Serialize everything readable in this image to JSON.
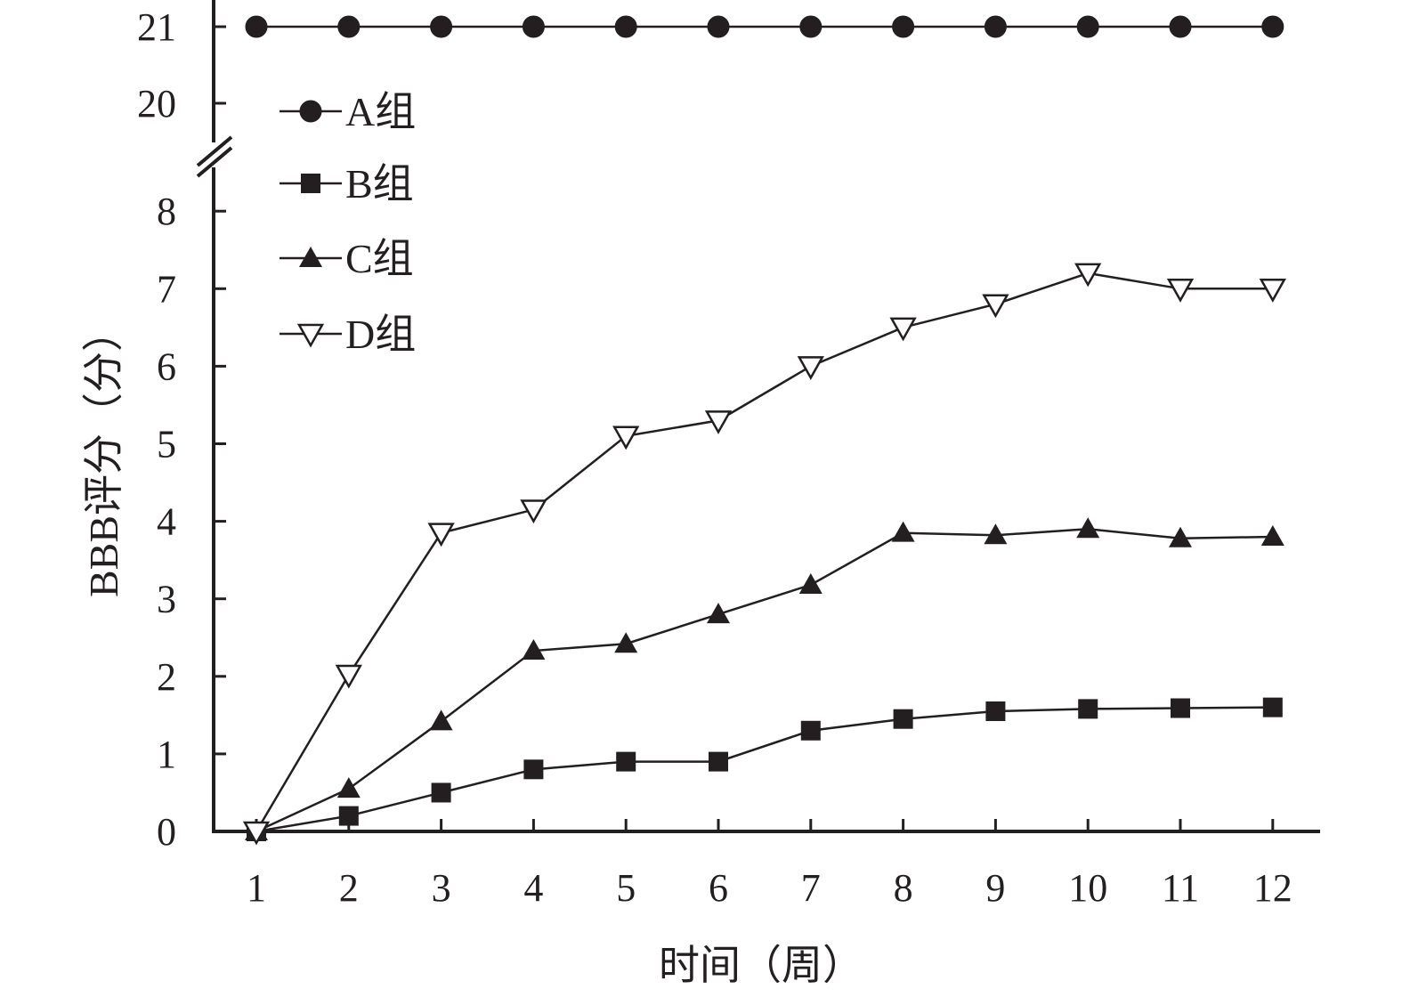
{
  "chart_data": {
    "type": "line",
    "xlabel": "时间（周）",
    "ylabel": "BBB评分（分）",
    "x": [
      1,
      2,
      3,
      4,
      5,
      6,
      7,
      8,
      9,
      10,
      11,
      12
    ],
    "x_tick_labels": [
      "1",
      "2",
      "3",
      "4",
      "5",
      "6",
      "7",
      "8",
      "9",
      "10",
      "11",
      "12"
    ],
    "y_axis_break": true,
    "y_lower_range": [
      0,
      8
    ],
    "y_upper_range": [
      20,
      21
    ],
    "y_tick_labels": [
      "0",
      "1",
      "2",
      "3",
      "4",
      "5",
      "6",
      "7",
      "8",
      "20",
      "21"
    ],
    "grid": false,
    "legend_position": "top-left",
    "series": [
      {
        "name": "A组",
        "marker": "filled-circle",
        "values": [
          21,
          21,
          21,
          21,
          21,
          21,
          21,
          21,
          21,
          21,
          21,
          21
        ]
      },
      {
        "name": "B组",
        "marker": "filled-square",
        "values": [
          0,
          0.2,
          0.5,
          0.8,
          0.9,
          0.9,
          1.3,
          1.45,
          1.55,
          1.58,
          1.59,
          1.6
        ]
      },
      {
        "name": "C组",
        "marker": "filled-triangle",
        "values": [
          0,
          0.55,
          1.42,
          2.33,
          2.42,
          2.8,
          3.18,
          3.85,
          3.82,
          3.9,
          3.78,
          3.8
        ]
      },
      {
        "name": "D组",
        "marker": "open-triangle-down",
        "values": [
          0,
          2.02,
          3.85,
          4.15,
          5.1,
          5.3,
          6.0,
          6.5,
          6.8,
          7.2,
          7.0,
          7.0
        ]
      }
    ],
    "colors": {
      "ink": "#231f20",
      "background": "#ffffff"
    }
  }
}
